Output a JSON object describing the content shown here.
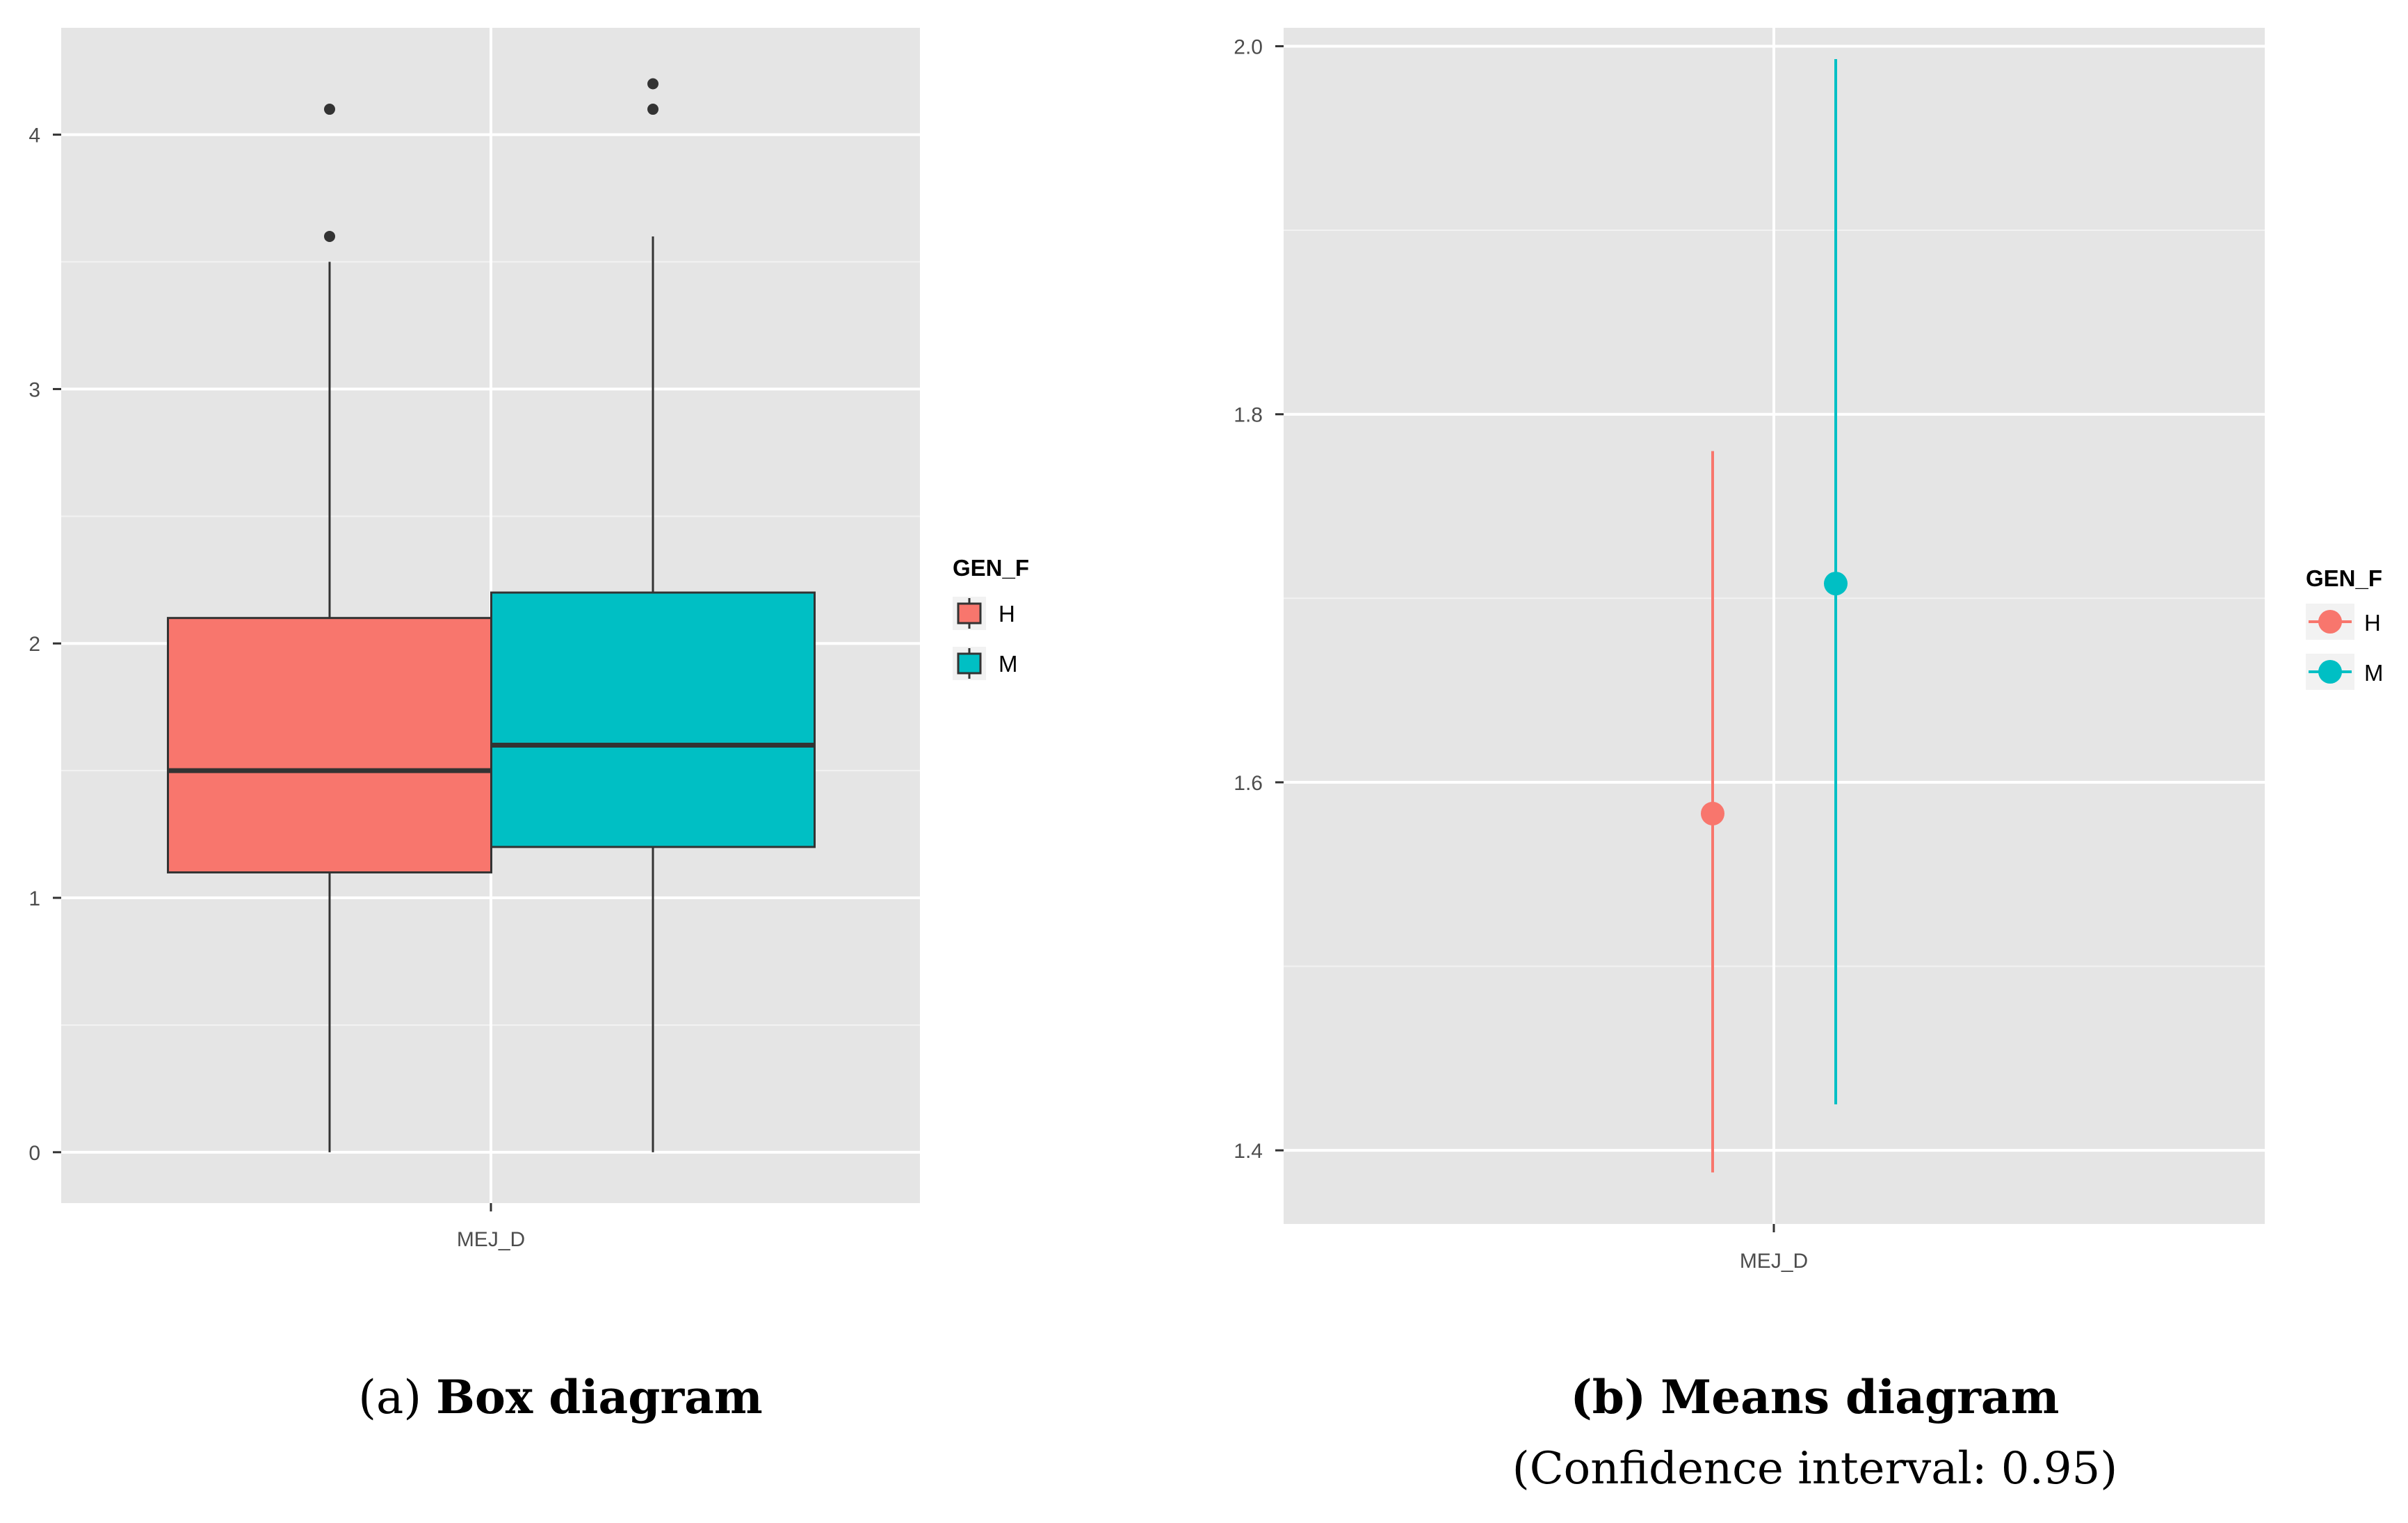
{
  "chart_data": [
    {
      "type": "box",
      "x_category": "MEJ_D",
      "ylim": [
        -0.2,
        4.42
      ],
      "y_ticks": [
        0,
        1,
        2,
        3,
        4
      ],
      "legend": {
        "title": "GEN_F",
        "position": "right"
      },
      "groups": [
        {
          "name": "H",
          "color": "#F8766D",
          "min": 0,
          "q1": 1.1,
          "median": 1.5,
          "q3": 2.1,
          "max": 3.5,
          "outliers": [
            3.6,
            4.1
          ]
        },
        {
          "name": "M",
          "color": "#00BFC4",
          "min": 0,
          "q1": 1.2,
          "median": 1.6,
          "q3": 2.2,
          "max": 3.6,
          "outliers": [
            4.1,
            4.2
          ]
        }
      ],
      "caption": {
        "label": "a",
        "title": "Box diagram"
      }
    },
    {
      "type": "errorbar",
      "x_category": "MEJ_D",
      "ylim": [
        1.36,
        2.01
      ],
      "y_ticks": [
        1.4,
        1.6,
        1.8,
        2.0
      ],
      "y_tick_labels": [
        "1.4",
        "1.6",
        "1.8",
        "2.0"
      ],
      "legend": {
        "title": "GEN_F",
        "position": "right"
      },
      "groups": [
        {
          "name": "H",
          "color": "#F8766D",
          "mean": 1.583,
          "lower": 1.388,
          "upper": 1.78
        },
        {
          "name": "M",
          "color": "#00BFC4",
          "mean": 1.708,
          "lower": 1.425,
          "upper": 1.993
        }
      ],
      "caption": {
        "label": "b",
        "title": "Means diagram",
        "subtitle": "(Confidence interval: 0.95)"
      }
    }
  ]
}
